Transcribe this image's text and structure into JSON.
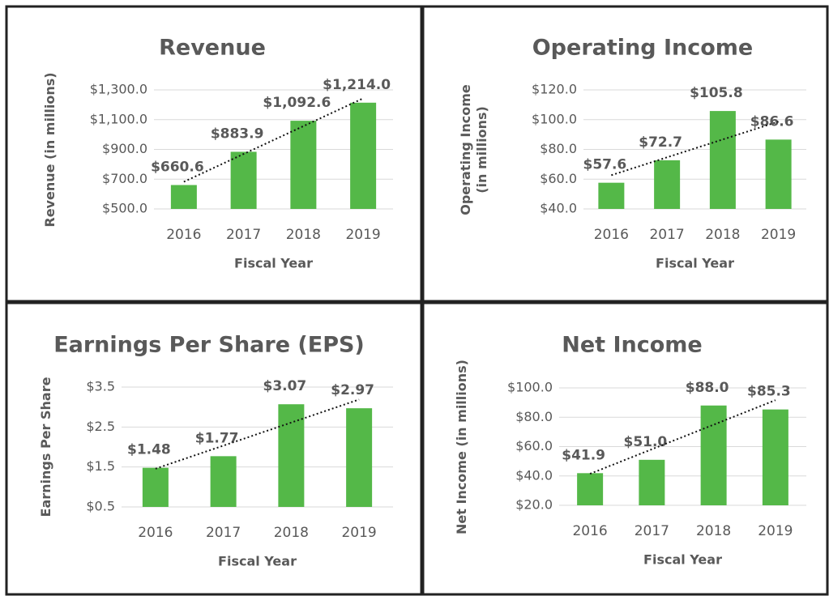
{
  "chart_data": [
    {
      "type": "bar",
      "title": "Revenue",
      "y_label": "Revenue (in millions)",
      "x_label": "Fiscal Year",
      "categories": [
        "2016",
        "2017",
        "2018",
        "2019"
      ],
      "values": [
        660.6,
        883.9,
        1092.6,
        1214.0
      ],
      "value_labels": [
        "$660.6",
        "$883.9",
        "$1,092.6",
        "$1,214.0"
      ],
      "color": "#54b848",
      "trendline": "linear",
      "ylim": [
        500,
        1300
      ],
      "yticks": [
        {
          "value": 500,
          "label": "$500.0"
        },
        {
          "value": 700,
          "label": "$700.0"
        },
        {
          "value": 900,
          "label": "$900.0"
        },
        {
          "value": 1100,
          "label": "$1,100.0"
        },
        {
          "value": 1300,
          "label": "$1,300.0"
        }
      ],
      "grid": true
    },
    {
      "type": "bar",
      "title": "Operating Income",
      "y_label": "Operating Income (in millions)",
      "x_label": "Fiscal Year",
      "categories": [
        "2016",
        "2017",
        "2018",
        "2019"
      ],
      "values": [
        57.6,
        72.7,
        105.8,
        86.6
      ],
      "value_labels": [
        "$57.6",
        "$72.7",
        "$105.8",
        "$86.6"
      ],
      "color": "#54b848",
      "trendline": "linear",
      "ylim": [
        40,
        120
      ],
      "yticks": [
        {
          "value": 40,
          "label": "$40.0"
        },
        {
          "value": 60,
          "label": "$60.0"
        },
        {
          "value": 80,
          "label": "$80.0"
        },
        {
          "value": 100,
          "label": "$100.0"
        },
        {
          "value": 120,
          "label": "$120.0"
        }
      ],
      "grid": true
    },
    {
      "type": "bar",
      "title": "Earnings Per Share (EPS)",
      "y_label": "Earnings Per Share",
      "x_label": "Fiscal Year",
      "categories": [
        "2016",
        "2017",
        "2018",
        "2019"
      ],
      "values": [
        1.48,
        1.77,
        3.07,
        2.97
      ],
      "value_labels": [
        "$1.48",
        "$1.77",
        "$3.07",
        "$2.97"
      ],
      "color": "#54b848",
      "trendline": "linear",
      "ylim": [
        0.5,
        3.5
      ],
      "yticks": [
        {
          "value": 0.5,
          "label": "$0.5"
        },
        {
          "value": 1.5,
          "label": "$1.5"
        },
        {
          "value": 2.5,
          "label": "$2.5"
        },
        {
          "value": 3.5,
          "label": "$3.5"
        }
      ],
      "grid": true
    },
    {
      "type": "bar",
      "title": "Net Income",
      "y_label": "Net Income (in millions)",
      "x_label": "Fiscal Year",
      "categories": [
        "2016",
        "2017",
        "2018",
        "2019"
      ],
      "values": [
        41.9,
        51.0,
        88.0,
        85.3
      ],
      "value_labels": [
        "$41.9",
        "$51.0",
        "$88.0",
        "$85.3"
      ],
      "color": "#54b848",
      "trendline": "linear",
      "ylim": [
        20,
        100
      ],
      "yticks": [
        {
          "value": 20,
          "label": "$20.0"
        },
        {
          "value": 40,
          "label": "$40.0"
        },
        {
          "value": 60,
          "label": "$60.0"
        },
        {
          "value": 80,
          "label": "$80.0"
        },
        {
          "value": 100,
          "label": "$100.0"
        }
      ],
      "grid": true
    }
  ]
}
